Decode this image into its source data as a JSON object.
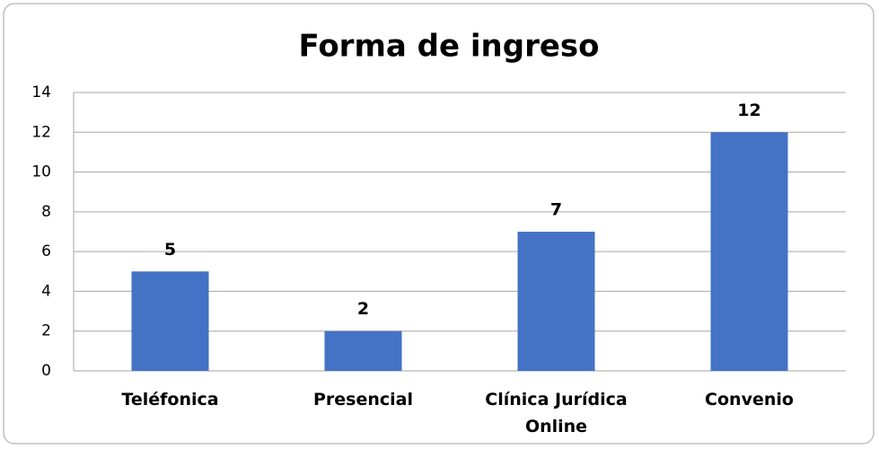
{
  "chart_data": {
    "type": "bar",
    "title": "Forma de ingreso",
    "categories": [
      "Teléfonica",
      "Presencial",
      "Clínica Jurídica Online",
      "Convenio"
    ],
    "values": [
      5,
      2,
      7,
      12
    ],
    "color": "#4472c4",
    "ylim": [
      0,
      14
    ],
    "yticks": [
      0,
      2,
      4,
      6,
      8,
      10,
      12,
      14
    ],
    "grid": true
  }
}
